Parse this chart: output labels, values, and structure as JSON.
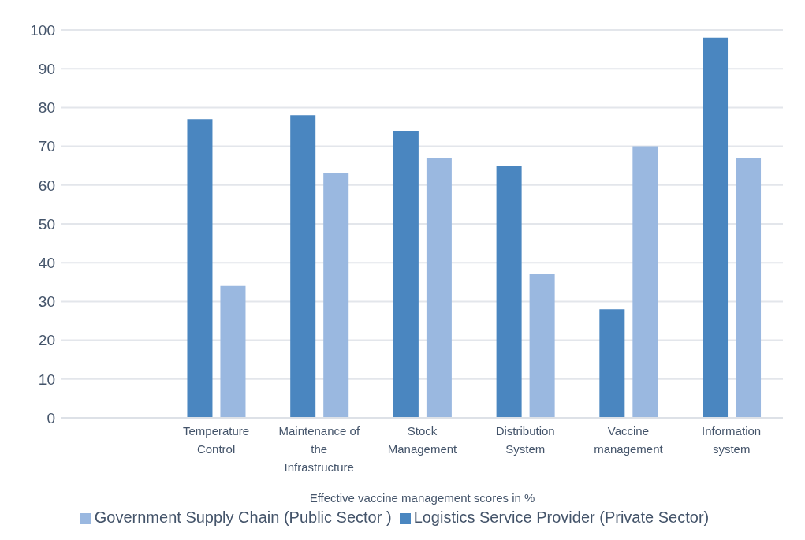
{
  "chart_data": {
    "type": "bar",
    "xlabel": "Effective vaccine management scores in %",
    "categories": [
      null,
      "Temperature Control",
      "Maintenance of the Infrastructure",
      "Stock Management",
      "Distribution System",
      "Vaccine management",
      "Information system"
    ],
    "series": [
      {
        "name": "Logistics Service Provider (Private Sector)",
        "color": "#4a86c0",
        "values": [
          null,
          77,
          78,
          74,
          65,
          28,
          98
        ]
      },
      {
        "name": "Government Supply Chain (Public Sector )",
        "color": "#9ab8e0",
        "values": [
          null,
          34,
          63,
          67,
          37,
          70,
          67
        ]
      }
    ],
    "ylim": [
      0,
      100
    ],
    "yticks": [
      0,
      10,
      20,
      30,
      40,
      50,
      60,
      70,
      80,
      90,
      100
    ],
    "grid": "y",
    "legend": "bottom"
  }
}
